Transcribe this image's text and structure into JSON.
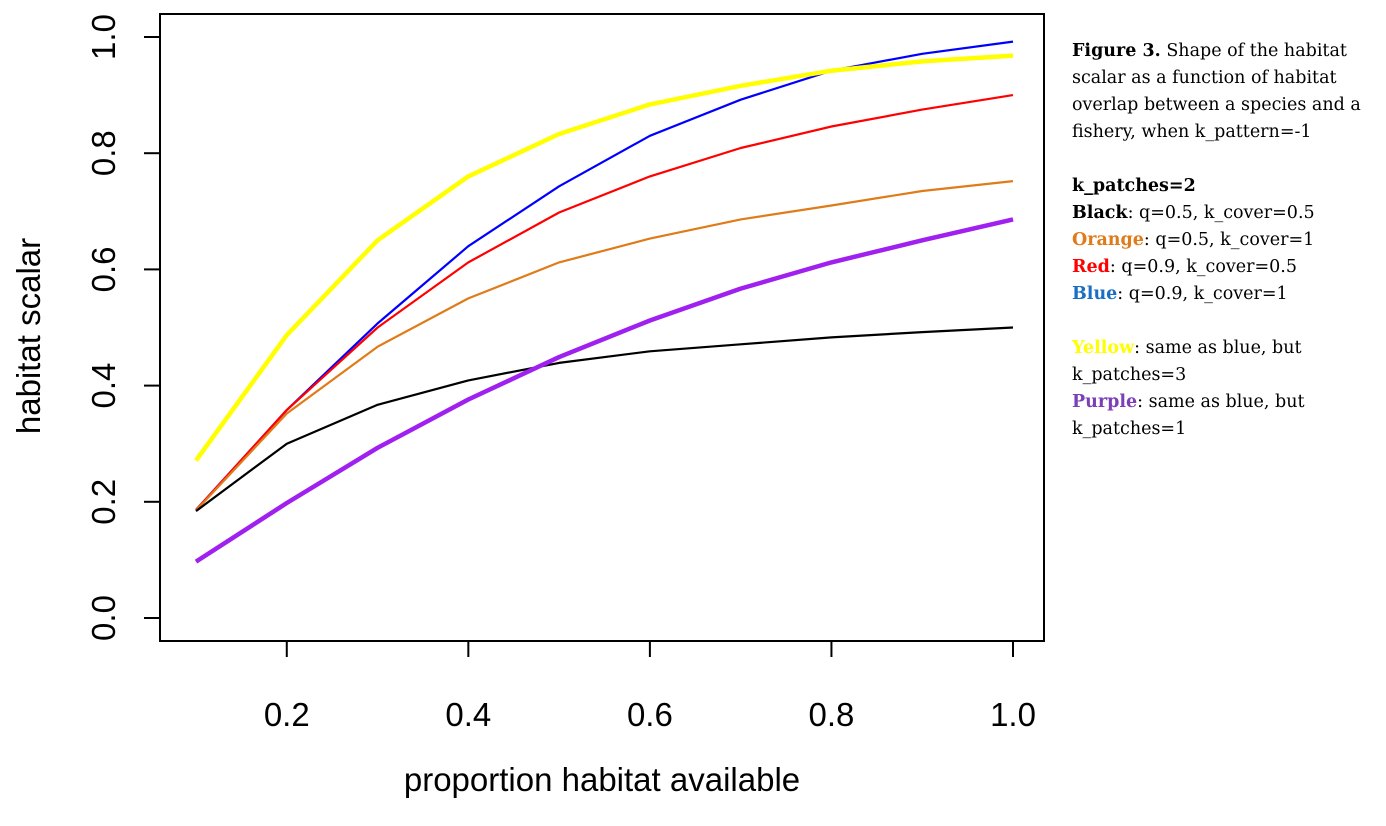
{
  "chart_data": {
    "type": "line",
    "xlabel": "proportion habitat available",
    "ylabel": "habitat scalar",
    "xlim": [
      0.1,
      1.0
    ],
    "ylim": [
      0.0,
      1.0
    ],
    "x_ticks": [
      "0.2",
      "0.4",
      "0.6",
      "0.8",
      "1.0"
    ],
    "y_ticks": [
      "0.0",
      "0.2",
      "0.4",
      "0.6",
      "0.8",
      "1.0"
    ],
    "x": [
      0.1,
      0.2,
      0.3,
      0.4,
      0.5,
      0.6,
      0.7,
      0.8,
      0.9,
      1.0
    ],
    "series": [
      {
        "name": "Black",
        "color": "#000000",
        "values": [
          0.184,
          0.3,
          0.367,
          0.409,
          0.439,
          0.459,
          0.471,
          0.483,
          0.492,
          0.5
        ]
      },
      {
        "name": "Orange",
        "color": "#e07b1a",
        "values": [
          0.185,
          0.352,
          0.467,
          0.55,
          0.612,
          0.653,
          0.686,
          0.71,
          0.735,
          0.752
        ]
      },
      {
        "name": "Red",
        "color": "#ff0000",
        "values": [
          0.186,
          0.358,
          0.5,
          0.612,
          0.698,
          0.76,
          0.809,
          0.846,
          0.875,
          0.9
        ]
      },
      {
        "name": "Blue",
        "color": "#0000ff",
        "values": [
          0.186,
          0.358,
          0.507,
          0.64,
          0.743,
          0.83,
          0.892,
          0.942,
          0.971,
          0.992
        ]
      },
      {
        "name": "Yellow",
        "color": "#ffff00",
        "values": [
          0.271,
          0.487,
          0.65,
          0.76,
          0.833,
          0.884,
          0.916,
          0.942,
          0.958,
          0.968
        ]
      },
      {
        "name": "Purple",
        "color": "#a020f0",
        "values": [
          0.097,
          0.198,
          0.293,
          0.376,
          0.449,
          0.512,
          0.567,
          0.612,
          0.65,
          0.686
        ]
      }
    ]
  },
  "caption": {
    "figure_label": "Figure 3.",
    "figure_text": " Shape of the habitat scalar as a function of habitat overlap between a species and a fishery, when k_pattern=-1",
    "patches_heading": "k_patches=2",
    "legend": [
      {
        "label": "Black",
        "desc": ": q=0.5, k_cover=0.5",
        "color": "#000000"
      },
      {
        "label": "Orange",
        "desc": ": q=0.5, k_cover=1",
        "color": "#e07b1a"
      },
      {
        "label": "Red",
        "desc": ": q=0.9, k_cover=0.5",
        "color": "#ff0000"
      },
      {
        "label": "Blue",
        "desc": ": q=0.9, k_cover=1",
        "color": "#1a6fc4"
      },
      {
        "label": "Yellow",
        "desc": ": same as blue, but k_patches=3",
        "color": "#ffff00"
      },
      {
        "label": "Purple",
        "desc": ": same as blue, but k_patches=1",
        "color": "#7b3fb8"
      }
    ]
  }
}
